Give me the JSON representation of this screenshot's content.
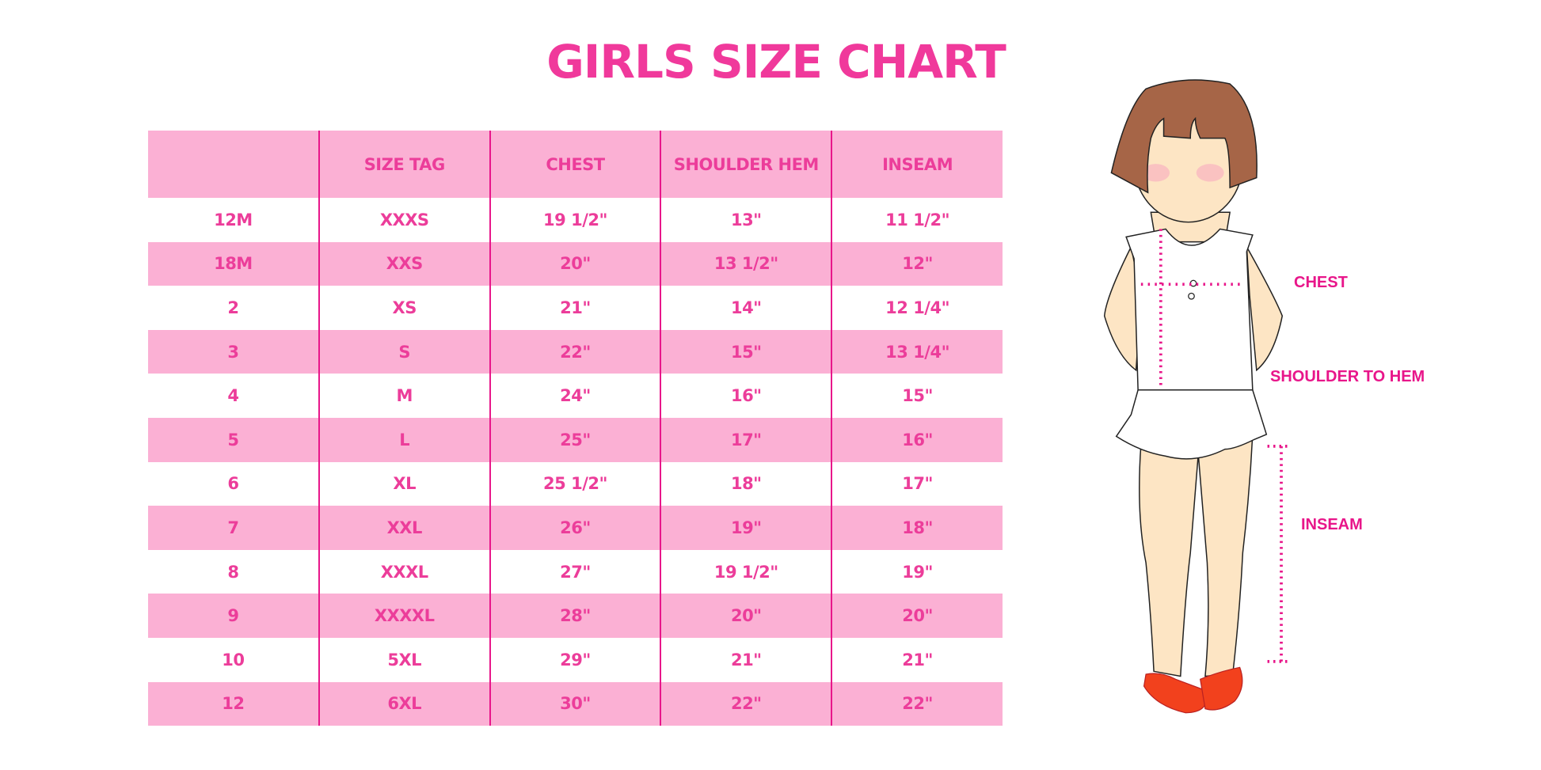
{
  "title": "GIRLS SIZE CHART",
  "table": {
    "headers": [
      "",
      "SIZE TAG",
      "CHEST",
      "SHOULDER HEM",
      "INSEAM"
    ],
    "rows": [
      [
        "12M",
        "XXXS",
        "19 1/2\"",
        "13\"",
        "11 1/2\""
      ],
      [
        "18M",
        "XXS",
        "20\"",
        "13 1/2\"",
        "12\""
      ],
      [
        "2",
        "XS",
        "21\"",
        "14\"",
        "12 1/4\""
      ],
      [
        "3",
        "S",
        "22\"",
        "15\"",
        "13 1/4\""
      ],
      [
        "4",
        "M",
        "24\"",
        "16\"",
        "15\""
      ],
      [
        "5",
        "L",
        "25\"",
        "17\"",
        "16\""
      ],
      [
        "6",
        "XL",
        "25 1/2\"",
        "18\"",
        "17\""
      ],
      [
        "7",
        "XXL",
        "26\"",
        "19\"",
        "18\""
      ],
      [
        "8",
        "XXXL",
        "27\"",
        "19 1/2\"",
        "19\""
      ],
      [
        "9",
        "XXXXL",
        "28\"",
        "20\"",
        "20\""
      ],
      [
        "10",
        "5XL",
        "29\"",
        "21\"",
        "21\""
      ],
      [
        "12",
        "6XL",
        "30\"",
        "22\"",
        "22\""
      ]
    ]
  },
  "figure": {
    "labels": {
      "chest": "CHEST",
      "shoulder_to_hem": "SHOULDER TO HEM",
      "inseam": "INSEAM"
    }
  },
  "colors": {
    "accent": "#ec3d9a",
    "row_stripe": "#fbb0d4",
    "divider": "#e8168a"
  }
}
